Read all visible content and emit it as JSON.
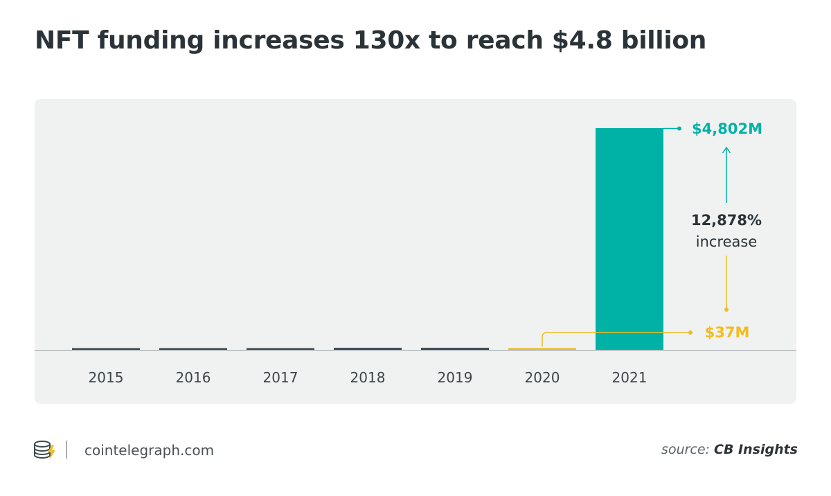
{
  "title": "NFT funding increases 130x to reach $4.8 billion",
  "chart_data": {
    "type": "bar",
    "categories": [
      "2015",
      "2016",
      "2017",
      "2018",
      "2019",
      "2020",
      "2021"
    ],
    "values": [
      2,
      2,
      2,
      44,
      44,
      37,
      4802
    ],
    "units": "$M",
    "ylim": [
      0,
      4802
    ],
    "annotations": {
      "top_value": "$4,802M",
      "base_value": "$37M",
      "change_pct": "12,878%",
      "change_word": "increase"
    },
    "colors": {
      "highlight": "#00b2a6",
      "base_highlight": "#f1bc1f",
      "normal": "#3b4a4f",
      "axis": "#9aa1a4"
    }
  },
  "footer": {
    "site": "cointelegraph.com",
    "source_prefix": "source:",
    "source_name": "CB Insights"
  }
}
